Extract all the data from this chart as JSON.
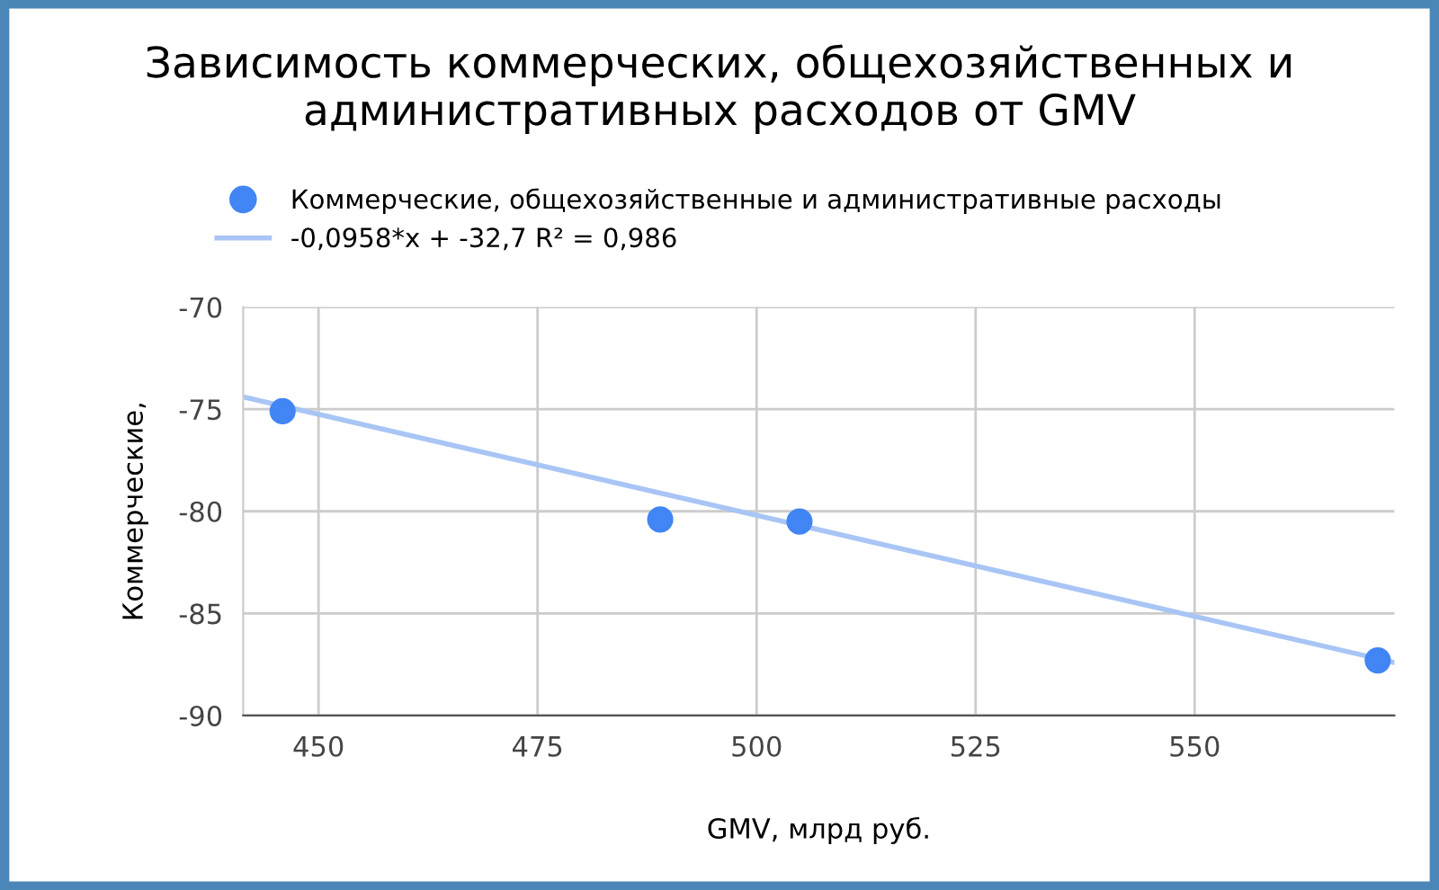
{
  "chart_data": {
    "type": "scatter",
    "title": "Зависимость коммерческих, общехозяйственных и административных расходов от GMV",
    "xlabel": "GMV, млрд руб.",
    "ylabel": "Коммерческие,",
    "series": [
      {
        "name": "Коммерческие, общехозяйственные и административные расходы",
        "color": "#4285f4",
        "x": [
          445.9,
          489.0,
          504.9,
          570.9
        ],
        "values": [
          -75.1,
          -80.4,
          -80.5,
          -87.3
        ],
        "marker": "circle"
      },
      {
        "name": "-0,0958*x + -32,7 R² = 0,986",
        "type": "line",
        "color": "#a8c5f5",
        "x": [
          441.4,
          572.8
        ],
        "values": [
          -74.4,
          -87.4
        ],
        "marker": "none",
        "line_style": "solid"
      }
    ],
    "xlim": [
      441.4,
      572.8
    ],
    "xticks": [
      450,
      475,
      500,
      525,
      550
    ],
    "ylim": [
      -90,
      -70
    ],
    "yticks": [
      -90,
      -85,
      -80,
      -75,
      -70
    ],
    "grid": true,
    "legend": "top"
  }
}
